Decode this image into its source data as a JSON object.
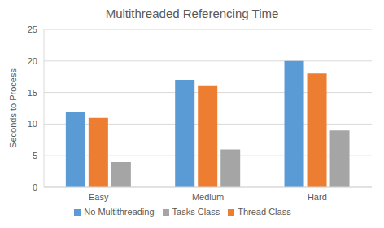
{
  "chart_data": {
    "type": "bar",
    "title": "Multithreaded Referencing Time",
    "y_label": "Seconds to Process",
    "categories": [
      "Easy",
      "Medium",
      "Hard"
    ],
    "series": [
      {
        "name": "No Multithreading",
        "color": "#5b9bd5",
        "values": [
          12,
          17,
          20
        ]
      },
      {
        "name": "Thread Class",
        "color": "#ed7d31",
        "values": [
          11,
          16,
          18
        ]
      },
      {
        "name": "Tasks Class",
        "color": "#a5a5a5",
        "values": [
          4,
          6,
          9
        ]
      }
    ],
    "ylim": [
      0,
      25
    ],
    "yticks": [
      0,
      5,
      10,
      15,
      20,
      25
    ],
    "grid": true,
    "legend": "bottom"
  }
}
